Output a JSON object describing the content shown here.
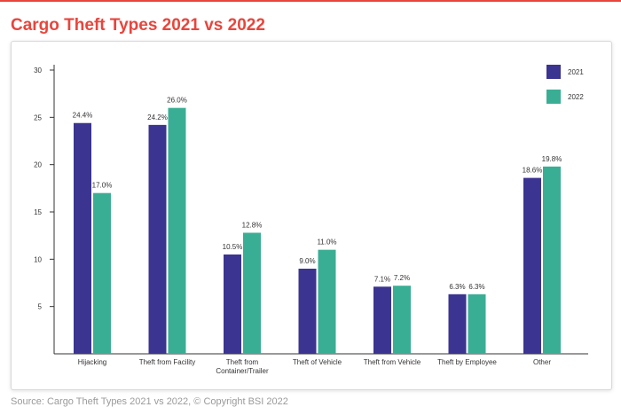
{
  "title": "Cargo Theft Types 2021 vs 2022",
  "source": "Source: Cargo Theft Types 2021 vs 2022, © Copyright BSI 2022",
  "chart_data": {
    "type": "bar",
    "categories": [
      [
        "Hijacking"
      ],
      [
        "Theft from Facility"
      ],
      [
        "Theft from",
        "Container/Trailer"
      ],
      [
        "Theft of Vehicle"
      ],
      [
        "Theft from Vehicle"
      ],
      [
        "Theft by Employee"
      ],
      [
        "Other"
      ]
    ],
    "series": [
      {
        "name": "2021",
        "color": "#3b3490",
        "values": [
          24.4,
          24.2,
          10.5,
          9.0,
          7.1,
          6.3,
          18.6
        ]
      },
      {
        "name": "2022",
        "color": "#3aae94",
        "values": [
          17.0,
          26.0,
          12.8,
          11.0,
          7.2,
          6.3,
          19.8
        ]
      }
    ],
    "ylim": [
      0,
      30
    ],
    "yticks": [
      5,
      10,
      15,
      20,
      25,
      30
    ],
    "value_suffix": "%",
    "legend_position": "top-right",
    "grid": false
  }
}
